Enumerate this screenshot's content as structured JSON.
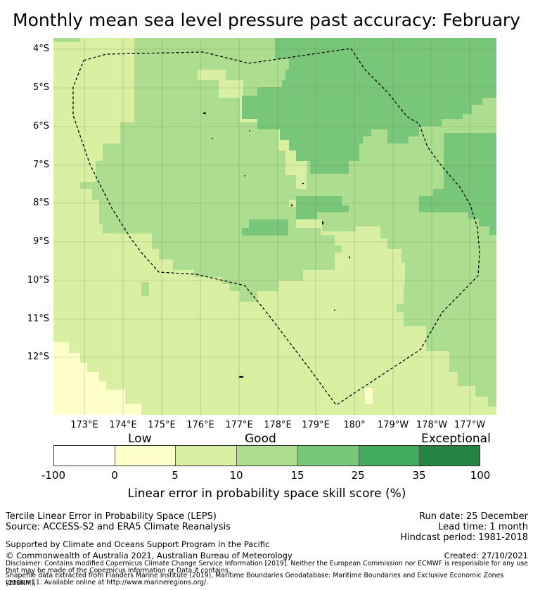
{
  "title": "Monthly mean sea level pressure past accuracy: February",
  "map": {
    "lat_labels": [
      "4°S",
      "5°S",
      "6°S",
      "7°S",
      "8°S",
      "9°S",
      "10°S",
      "11°S",
      "12°S"
    ],
    "lon_labels": [
      "173°E",
      "174°E",
      "175°E",
      "176°E",
      "177°E",
      "178°E",
      "179°E",
      "180°",
      "179°W",
      "178°W",
      "177°W"
    ],
    "category_colors": {
      "low": "#ffffcc",
      "lowgood": "#d9f0a3",
      "good": "#addd8e",
      "better": "#78c679",
      "high": "#41ab5d",
      "exceptional": "#238443"
    }
  },
  "colorbar": {
    "categories": [
      "Low",
      "Good",
      "Exceptional"
    ],
    "ticks": [
      "-100",
      "0",
      "5",
      "10",
      "15",
      "25",
      "35",
      "100"
    ],
    "colors": [
      "#ffffff",
      "#ffffcc",
      "#d9f0a3",
      "#addd8e",
      "#78c679",
      "#41ab5d",
      "#238443"
    ],
    "label": "Linear error in probability space skill score (%)"
  },
  "footer": {
    "left1": "Tercile Linear Error in Probability Space (LEPS)",
    "left2": "Source: ACCESS-S2 and ERA5 Climate Reanalysis",
    "right1": "Run date: 25 December",
    "right2": "Lead time: 1 month",
    "right3": "Hindcast period: 1981-2018",
    "support": "Supported by Climate and Oceans Support Program in the Pacific",
    "copyright": "© Commonwealth of Australia 2021, Australian Bureau of Meteorology",
    "created": "Created: 27/10/2021",
    "disclaimer1": "Disclaimer: Contains modified Copernicus Climate Change Service Information [2019]. Neither the European Commission nor ECMWF is responsible for any use",
    "disclaimer2": "that may be made of the Copernicus Information or Data it contains.",
    "disclaimer3": "Shapefile data extracted from Flanders Marine Institute (2019), Maritime Boundaries Geodatabase: Maritime Boundaries and Exclusive Economic Zones (200NM),",
    "disclaimer4": "version 11. Available online at http://www.marineregions.org/."
  }
}
